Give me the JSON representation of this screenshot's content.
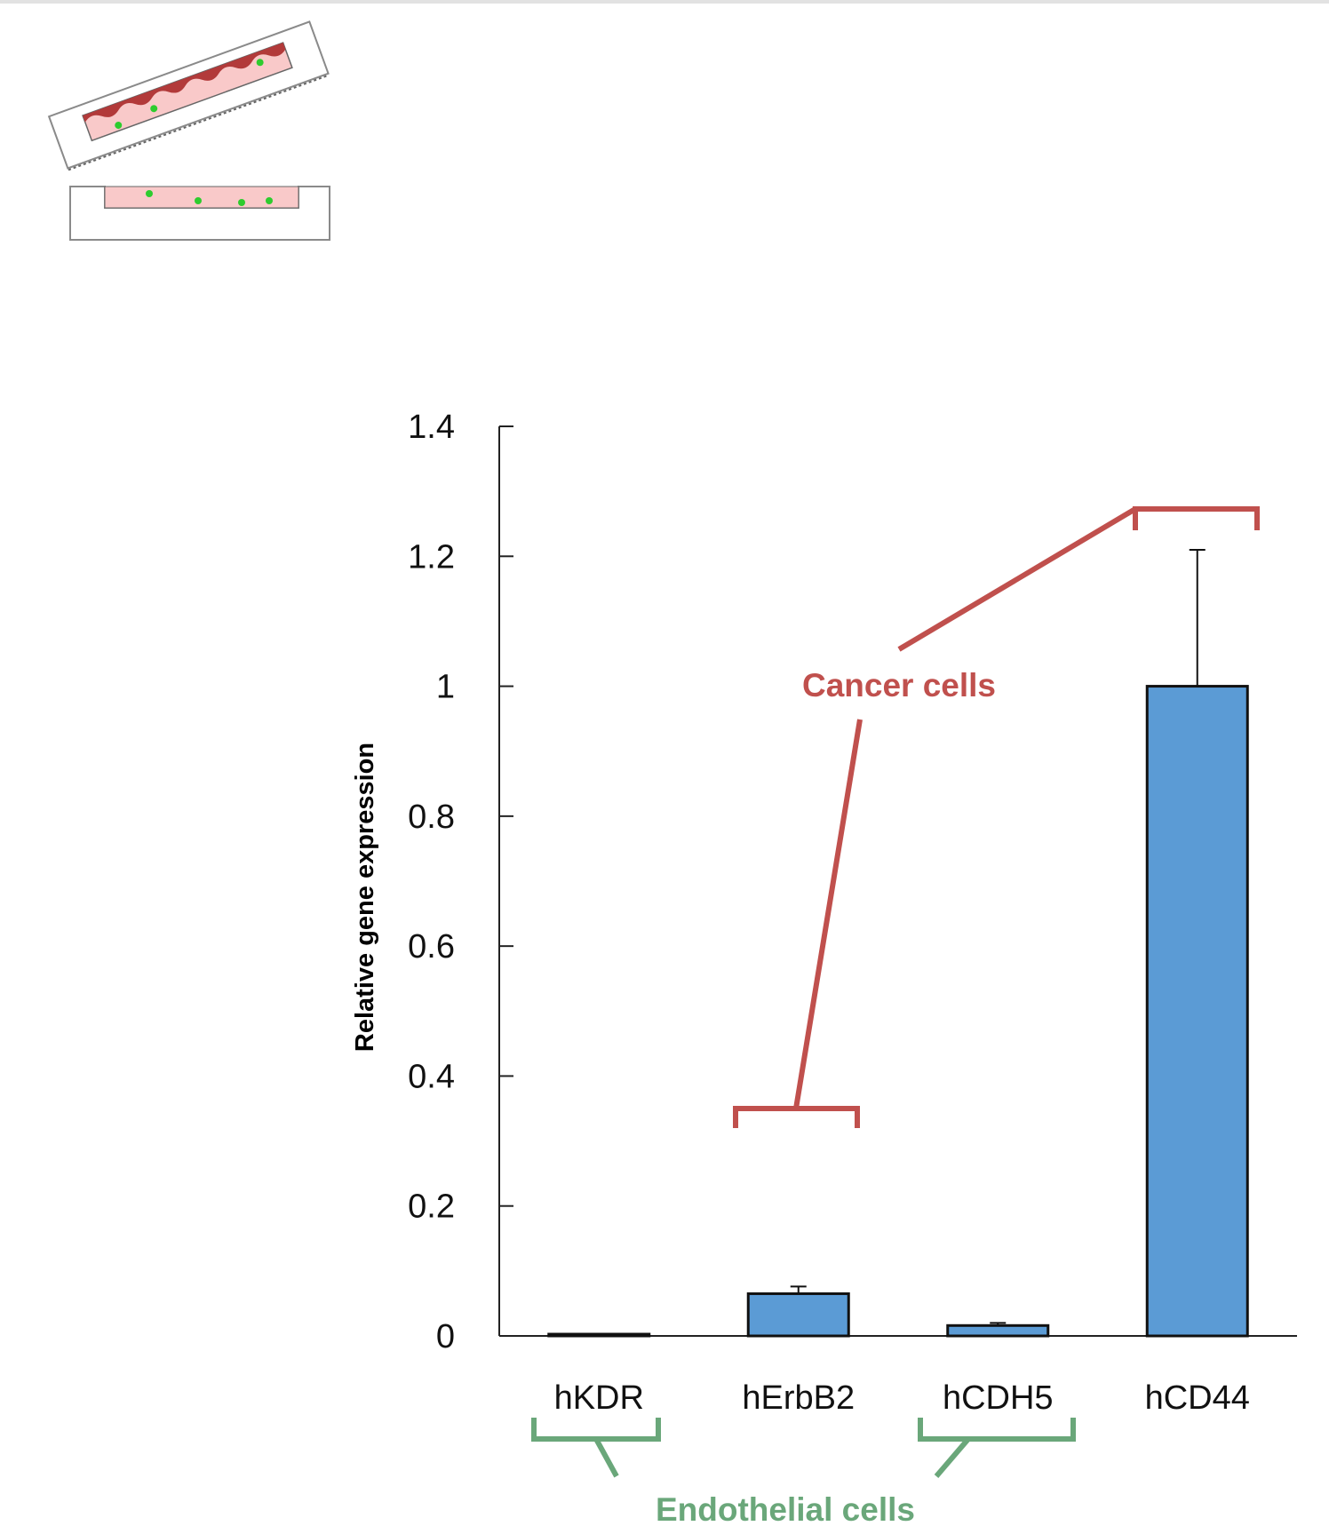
{
  "schematic": {
    "medium_color": "#f9c9c9",
    "tissue_color": "#b23a3a",
    "cell_color": "#2ecc2e",
    "frame_color": "#8a8a8a"
  },
  "chart_data": {
    "type": "bar",
    "categories": [
      "hKDR",
      "hErbB2",
      "hCDH5",
      "hCD44"
    ],
    "values": [
      0.002,
      0.065,
      0.016,
      1.0
    ],
    "errors": [
      0.0,
      0.011,
      0.004,
      0.21
    ],
    "ylabel": "Relative gene expression",
    "xlabel": "",
    "ylim": [
      0,
      1.4
    ],
    "yticks": [
      0,
      0.2,
      0.4,
      0.6,
      0.8,
      1,
      1.2,
      1.4
    ],
    "ytick_labels": [
      "0",
      "0.2",
      "0.4",
      "0.6",
      "0.8",
      "1",
      "1.2",
      "1.4"
    ],
    "bar_color": "#5b9bd5",
    "grid": false
  },
  "annotations": {
    "cancer_label": "Cancer cells",
    "cancer_color": "#c0504d",
    "endothelial_label": "Endothelial cells",
    "endothelial_color": "#6aa77a"
  }
}
